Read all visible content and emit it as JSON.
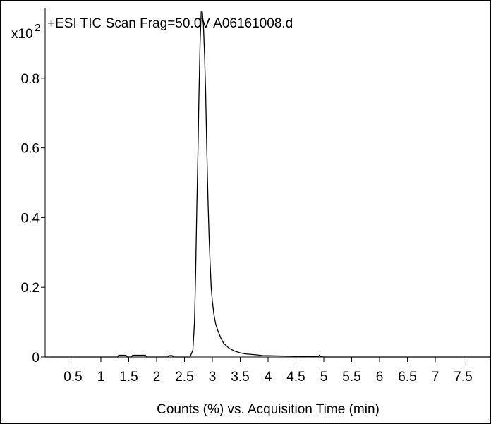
{
  "chart_data": {
    "type": "line",
    "title": "+ESI TIC Scan Frag=50.0V A06161008.d",
    "scale_label": "x10",
    "scale_exponent": "2",
    "xlabel": "Counts (%) vs. Acquisition Time (min)",
    "ylabel": "",
    "xlim": [
      0.0,
      8.0
    ],
    "ylim": [
      0.0,
      1.0
    ],
    "x_ticks": [
      "0.5",
      "1",
      "1.5",
      "2",
      "2.5",
      "3",
      "3.5",
      "4",
      "4.5",
      "5",
      "5.5",
      "6",
      "6.5",
      "7",
      "7.5"
    ],
    "y_ticks": [
      "0",
      "0.2",
      "0.4",
      "0.6",
      "0.8"
    ],
    "grid": false,
    "line_color": "#000000",
    "series": [
      {
        "x": [
          0.0,
          1.3,
          1.32,
          1.45,
          1.47,
          1.55,
          1.57,
          1.6,
          1.62,
          1.8,
          1.82,
          2.2,
          2.22,
          2.28,
          2.3,
          2.6,
          2.65,
          2.68,
          2.7,
          2.72,
          2.74,
          2.76,
          2.78,
          2.8,
          2.82,
          2.84,
          2.86,
          2.88,
          2.9,
          2.92,
          2.94,
          2.96,
          2.98,
          3.0,
          3.03,
          3.06,
          3.1,
          3.15,
          3.2,
          3.3,
          3.4,
          3.5,
          3.6,
          3.8,
          3.9,
          4.2,
          4.6,
          4.9,
          4.92,
          4.95,
          5.0,
          8.0
        ],
        "y": [
          0.0,
          0.0,
          0.005,
          0.005,
          0.0,
          0.0,
          0.005,
          0.005,
          0.005,
          0.005,
          0.0,
          0.0,
          0.004,
          0.004,
          0.0,
          0.0,
          0.02,
          0.1,
          0.24,
          0.42,
          0.58,
          0.75,
          0.9,
          0.99,
          0.99,
          0.95,
          0.87,
          0.76,
          0.6,
          0.46,
          0.35,
          0.27,
          0.2,
          0.16,
          0.12,
          0.095,
          0.075,
          0.055,
          0.04,
          0.025,
          0.017,
          0.012,
          0.009,
          0.006,
          0.004,
          0.003,
          0.002,
          0.001,
          0.005,
          0.001,
          0.0,
          0.0
        ]
      }
    ]
  }
}
